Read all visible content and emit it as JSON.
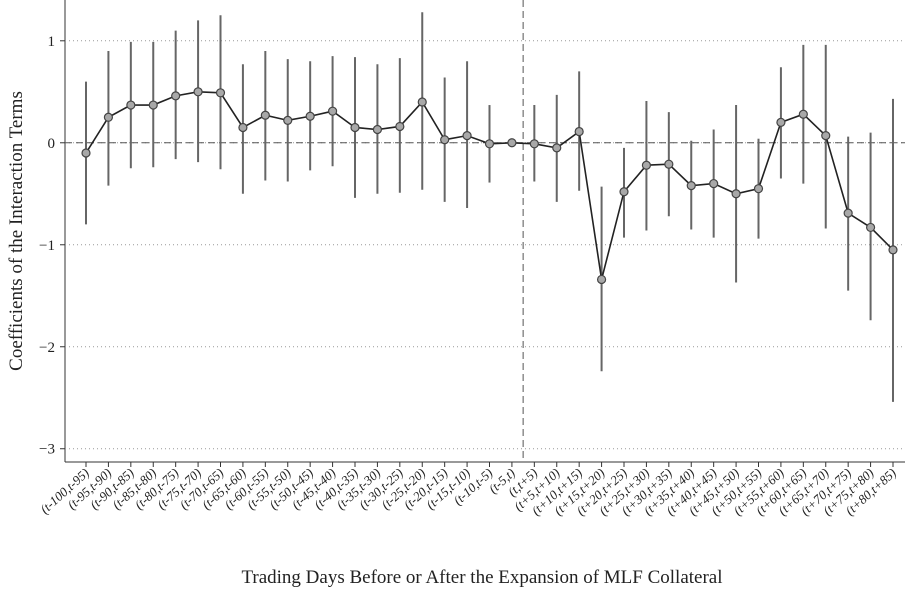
{
  "chart_data": {
    "type": "errorbar",
    "ylabel": "Coefficients of the Interaction Terms",
    "xlabel": "Trading Days Before or After the Expansion of MLF Collateral",
    "categories": [
      "(t-100,t-95)",
      "(t-95,t-90)",
      "(t-90,t-85)",
      "(t-85,t-80)",
      "(t-80,t-75)",
      "(t-75,t-70)",
      "(t-70,t-65)",
      "(t-65,t-60)",
      "(t-60,t-55)",
      "(t-55,t-50)",
      "(t-50,t-45)",
      "(t-45,t-40)",
      "(t-40,t-35)",
      "(t-35,t-30)",
      "(t-30,t-25)",
      "(t-25,t-20)",
      "(t-20,t-15)",
      "(t-15,t-10)",
      "(t-10,t-5)",
      "(t-5,t)",
      "(t,t+5)",
      "(t+5,t+10)",
      "(t+10,t+15)",
      "(t+15,t+20)",
      "(t+20,t+25)",
      "(t+25,t+30)",
      "(t+30,t+35)",
      "(t+35,t+40)",
      "(t+40,t+45)",
      "(t+45,t+50)",
      "(t+50,t+55)",
      "(t+55,t+60)",
      "(t+60,t+65)",
      "(t+65,t+70)",
      "(t+70,t+75)",
      "(t+75,t+80)",
      "(t+80,t+85)"
    ],
    "values": [
      -0.1,
      0.25,
      0.37,
      0.37,
      0.46,
      0.5,
      0.49,
      0.15,
      0.27,
      0.22,
      0.26,
      0.31,
      0.15,
      0.13,
      0.16,
      0.4,
      0.03,
      0.07,
      -0.01,
      0,
      -0.01,
      -0.05,
      0.11,
      -1.34,
      -0.48,
      -0.22,
      -0.21,
      -0.42,
      -0.4,
      -0.5,
      -0.45,
      0.2,
      0.28,
      0.07,
      -0.69,
      -0.83,
      -1.05
    ],
    "upper": [
      0.6,
      0.9,
      0.99,
      0.99,
      1.1,
      1.2,
      1.25,
      0.77,
      0.9,
      0.82,
      0.8,
      0.85,
      0.84,
      0.77,
      0.83,
      1.28,
      0.64,
      0.8,
      0.37,
      null,
      0.37,
      0.47,
      0.7,
      -0.43,
      -0.05,
      0.41,
      0.3,
      0.02,
      0.13,
      0.37,
      0.04,
      0.74,
      0.96,
      0.96,
      0.06,
      0.1,
      0.43
    ],
    "lower": [
      -0.8,
      -0.42,
      -0.25,
      -0.24,
      -0.16,
      -0.19,
      -0.26,
      -0.5,
      -0.37,
      -0.38,
      -0.27,
      -0.23,
      -0.54,
      -0.5,
      -0.49,
      -0.46,
      -0.58,
      -0.64,
      -0.39,
      null,
      -0.38,
      -0.58,
      -0.47,
      -2.24,
      -0.93,
      -0.86,
      -0.72,
      -0.85,
      -0.93,
      -1.37,
      -0.94,
      -0.35,
      -0.4,
      -0.84,
      -1.45,
      -1.74,
      -2.54
    ],
    "color": "#222222",
    "marker_color": "#a8a8a8",
    "error_color": "#666666",
    "ylim": [
      -3.13,
      1.4
    ],
    "yticks": [
      {
        "value": -3,
        "label": "−3"
      },
      {
        "value": -2,
        "label": "−2"
      },
      {
        "value": -1,
        "label": "−1"
      },
      0,
      1
    ],
    "grid": true
  }
}
